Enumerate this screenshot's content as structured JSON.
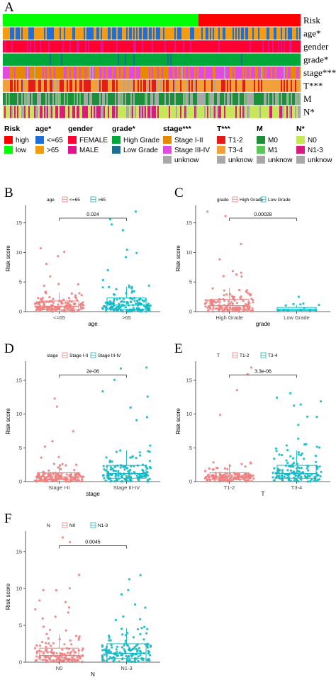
{
  "colors": {
    "high": "#ff0000",
    "low": "#00ff00",
    "age_le65": "#1f6fd6",
    "age_gt65": "#f39c12",
    "female": "#ff0033",
    "male": "#e0148a",
    "high_grade": "#00a83a",
    "low_grade": "#1b6f8f",
    "stage_I_II": "#e58a00",
    "stage_III_IV": "#e14be0",
    "unknow": "#a8a8a8",
    "t1_2": "#e31b1b",
    "t3_4": "#f2a13a",
    "m0": "#1b8f3a",
    "m1": "#57c957",
    "n0": "#c8e65a",
    "n1_3": "#d81b7d",
    "box_red": "#f08080",
    "box_cyan": "#13b8c4"
  },
  "panel_a": {
    "letter": "A",
    "tracks": [
      "Risk",
      "age*",
      "gender",
      "grade*",
      "stage***",
      "T***",
      "M",
      "N*"
    ],
    "legend": [
      {
        "title": "Risk",
        "items": [
          [
            "high",
            "high"
          ],
          [
            "low",
            "low"
          ]
        ]
      },
      {
        "title": "age*",
        "items": [
          [
            "<=65",
            "age_le65"
          ],
          [
            ">65",
            "age_gt65"
          ]
        ]
      },
      {
        "title": "gender",
        "items": [
          [
            "FEMALE",
            "female"
          ],
          [
            "MALE",
            "male"
          ]
        ]
      },
      {
        "title": "grade*",
        "items": [
          [
            "High Grade",
            "high_grade"
          ],
          [
            "Low Grade",
            "low_grade"
          ]
        ]
      },
      {
        "title": "stage***",
        "items": [
          [
            "Stage I-II",
            "stage_I_II"
          ],
          [
            "Stage III-IV",
            "stage_III_IV"
          ],
          [
            "unknow",
            "unknow"
          ]
        ]
      },
      {
        "title": "T***",
        "items": [
          [
            "T1-2",
            "t1_2"
          ],
          [
            "T3-4",
            "t3_4"
          ],
          [
            "unknow",
            "unknow"
          ]
        ]
      },
      {
        "title": "M",
        "items": [
          [
            "M0",
            "m0"
          ],
          [
            "M1",
            "m1"
          ],
          [
            "unknow",
            "unknow"
          ]
        ]
      },
      {
        "title": "N*",
        "items": [
          [
            "N0",
            "n0"
          ],
          [
            "N1-3",
            "n1_3"
          ],
          [
            "unknow",
            "unknow"
          ]
        ]
      }
    ]
  },
  "chart_data": [
    {
      "type": "box",
      "panel": "B",
      "legend_title": "age",
      "categories": [
        "<=65",
        ">65"
      ],
      "xlabel": "age",
      "ylabel": "Risk score",
      "ylim": [
        0,
        17
      ],
      "yticks": [
        0,
        5,
        10,
        15
      ],
      "pvalue": "0.024",
      "series": [
        {
          "name": "<=65",
          "color": "box_red",
          "q1": 0.3,
          "median": 0.9,
          "q3": 1.8,
          "whisker_low": 0.0,
          "whisker_high": 3.2,
          "max_point": 10.7
        },
        {
          "name": ">65",
          "color": "box_cyan",
          "q1": 0.4,
          "median": 1.1,
          "q3": 2.3,
          "whisker_low": 0.0,
          "whisker_high": 4.2,
          "max_point": 16.9
        }
      ]
    },
    {
      "type": "box",
      "panel": "C",
      "legend_title": "grade",
      "categories": [
        "High Grade",
        "Low Grade"
      ],
      "xlabel": "grade",
      "ylabel": "Risk score",
      "ylim": [
        0,
        17
      ],
      "yticks": [
        0,
        5,
        10,
        15
      ],
      "pvalue": "0.00028",
      "series": [
        {
          "name": "High Grade",
          "color": "box_red",
          "q1": 0.4,
          "median": 1.0,
          "q3": 2.1,
          "whisker_low": 0.0,
          "whisker_high": 4.0,
          "max_point": 16.9
        },
        {
          "name": "Low Grade",
          "color": "box_cyan",
          "q1": 0.2,
          "median": 0.4,
          "q3": 0.7,
          "whisker_low": 0.05,
          "whisker_high": 1.1,
          "max_point": 2.5
        }
      ]
    },
    {
      "type": "box",
      "panel": "D",
      "legend_title": "stage",
      "categories": [
        "Stage I-II",
        "Stage III-IV"
      ],
      "xlabel": "stage",
      "ylabel": "Risk score",
      "ylim": [
        0,
        17
      ],
      "yticks": [
        0,
        5,
        10,
        15
      ],
      "pvalue": "2e-06",
      "series": [
        {
          "name": "Stage I-II",
          "color": "box_red",
          "q1": 0.3,
          "median": 0.7,
          "q3": 1.3,
          "whisker_low": 0.0,
          "whisker_high": 2.6,
          "max_point": 12.3
        },
        {
          "name": "Stage III-IV",
          "color": "box_cyan",
          "q1": 0.5,
          "median": 1.2,
          "q3": 2.4,
          "whisker_low": 0.0,
          "whisker_high": 4.6,
          "max_point": 16.9
        }
      ]
    },
    {
      "type": "box",
      "panel": "E",
      "legend_title": "T",
      "categories": [
        "T1-2",
        "T3-4"
      ],
      "xlabel": "T",
      "ylabel": "Risk score",
      "ylim": [
        0,
        17
      ],
      "yticks": [
        0,
        5,
        10,
        15
      ],
      "pvalue": "3.3e-06",
      "series": [
        {
          "name": "T1-2",
          "color": "box_red",
          "q1": 0.3,
          "median": 0.7,
          "q3": 1.3,
          "whisker_low": 0.0,
          "whisker_high": 2.6,
          "max_point": 16.9
        },
        {
          "name": "T3-4",
          "color": "box_cyan",
          "q1": 0.5,
          "median": 1.2,
          "q3": 2.4,
          "whisker_low": 0.0,
          "whisker_high": 4.6,
          "max_point": 13.1
        }
      ]
    },
    {
      "type": "box",
      "panel": "F",
      "legend_title": "N",
      "categories": [
        "N0",
        "N1-3"
      ],
      "xlabel": "N",
      "ylabel": "Risk score",
      "ylim": [
        0,
        17
      ],
      "yticks": [
        0,
        5,
        10,
        15
      ],
      "pvalue": "0.0045",
      "series": [
        {
          "name": "N0",
          "color": "box_red",
          "q1": 0.3,
          "median": 0.9,
          "q3": 1.9,
          "whisker_low": 0.0,
          "whisker_high": 3.8,
          "max_point": 16.9
        },
        {
          "name": "N1-3",
          "color": "box_cyan",
          "q1": 0.5,
          "median": 1.2,
          "q3": 2.5,
          "whisker_low": 0.0,
          "whisker_high": 4.6,
          "max_point": 11.8
        }
      ]
    }
  ]
}
